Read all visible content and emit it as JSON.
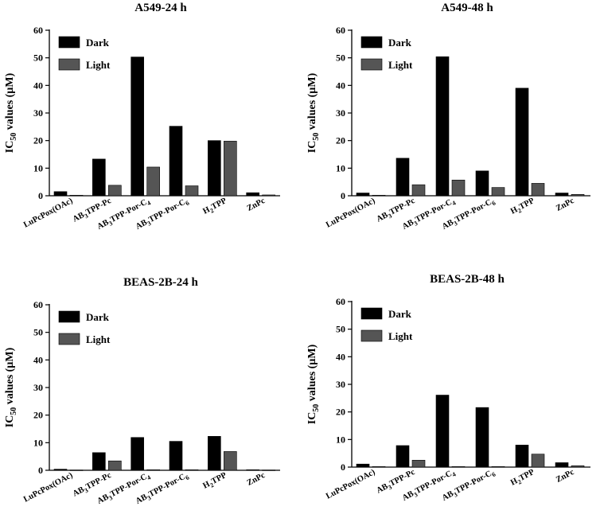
{
  "chart_data": [
    {
      "type": "bar",
      "title": "A549-24 h",
      "ylabel": "IC50 values (µM)",
      "ylim": [
        0,
        60
      ],
      "yticks": [
        "0",
        "10",
        "20",
        "30",
        "40",
        "50",
        "60"
      ],
      "categories": [
        "LuPcPox(OAc)",
        "AB3TPP-Pc",
        "AB3TPP-Por-C4",
        "AB3TPP-Por-C6",
        "H2TPP",
        "ZnPc"
      ],
      "series": [
        {
          "name": "Dark",
          "color": "#000000",
          "values": [
            1.5,
            13.3,
            50.3,
            25.2,
            20.0,
            1.1
          ]
        },
        {
          "name": "Light",
          "color": "#555555",
          "values": [
            0.2,
            3.8,
            10.4,
            3.6,
            19.8,
            0.3
          ]
        }
      ],
      "legend_position": "top-left"
    },
    {
      "type": "bar",
      "title": "A549-48 h",
      "ylabel": "IC50 values (µM)",
      "ylim": [
        0,
        60
      ],
      "yticks": [
        "0",
        "10",
        "20",
        "30",
        "40",
        "50",
        "60"
      ],
      "categories": [
        "LuPcPox(OAc)",
        "AB3TPP-Pc",
        "AB3TPP-Por-C4",
        "AB3TPP-Por-C6",
        "H2TPP",
        "ZnPc"
      ],
      "series": [
        {
          "name": "Dark",
          "color": "#000000",
          "values": [
            1.0,
            13.6,
            50.4,
            9.0,
            39.0,
            1.0
          ]
        },
        {
          "name": "Light",
          "color": "#555555",
          "values": [
            0.2,
            4.0,
            5.7,
            3.0,
            4.5,
            0.5
          ]
        }
      ],
      "legend_position": "top-left"
    },
    {
      "type": "bar",
      "title": "BEAS-2B-24 h",
      "ylabel": "IC50 values (µM)",
      "ylim": [
        0,
        60
      ],
      "yticks": [
        "0",
        "10",
        "20",
        "30",
        "40",
        "50",
        "60"
      ],
      "categories": [
        "LuPcPox(OAc)",
        "AB3TPP-Pc",
        "AB3TPP-Por-C4",
        "AB3TPP-Por-C6",
        "H2TPP",
        "ZnPc"
      ],
      "series": [
        {
          "name": "Dark",
          "color": "#000000",
          "values": [
            0.4,
            6.4,
            11.9,
            10.5,
            12.3,
            0.2
          ]
        },
        {
          "name": "Light",
          "color": "#555555",
          "values": [
            0.1,
            3.4,
            0.2,
            0.2,
            6.8,
            0.1
          ]
        }
      ],
      "legend_position": "top-left"
    },
    {
      "type": "bar",
      "title": "BEAS-2B-48 h",
      "ylabel": "IC50 values (µM)",
      "ylim": [
        0,
        60
      ],
      "yticks": [
        "0",
        "10",
        "20",
        "30",
        "40",
        "50",
        "60"
      ],
      "categories": [
        "LuPcPox(OAc)",
        "AB3TPP-Pc",
        "AB3TPP-Por-C4",
        "AB3TPP-Por-C6",
        "H2TPP",
        "ZnPc"
      ],
      "series": [
        {
          "name": "Dark",
          "color": "#000000",
          "values": [
            1.1,
            7.8,
            26.1,
            21.6,
            8.0,
            1.6
          ]
        },
        {
          "name": "Light",
          "color": "#555555",
          "values": [
            0.2,
            2.5,
            0.2,
            0.2,
            4.7,
            0.5
          ]
        }
      ],
      "legend_position": "top-left"
    }
  ]
}
